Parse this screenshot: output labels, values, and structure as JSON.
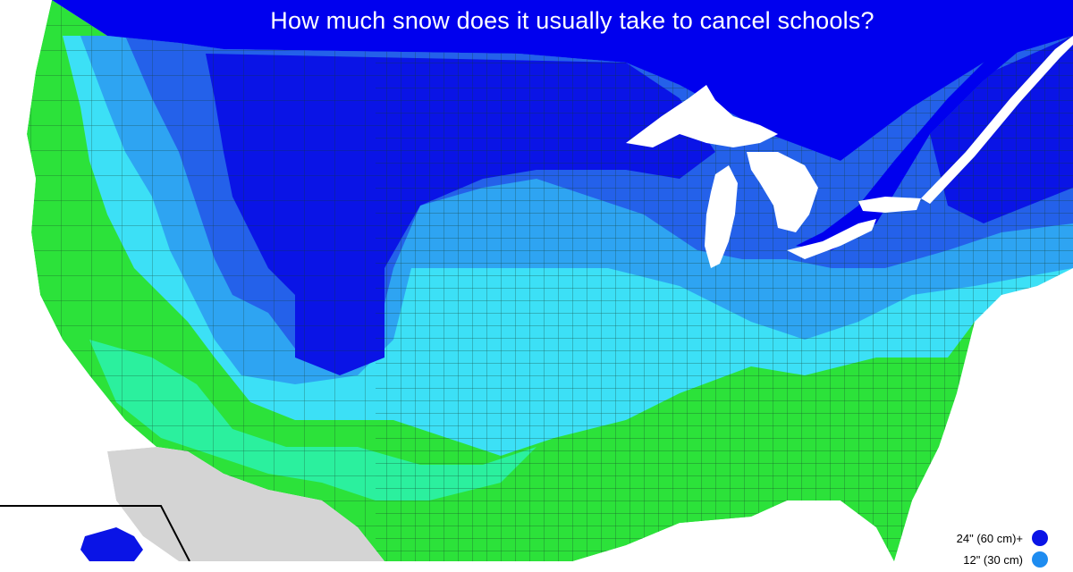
{
  "title": "How much snow does it usually take to cancel schools?",
  "legend": {
    "items": [
      {
        "label": "24\" (60 cm)+",
        "color": "#0a14e6"
      },
      {
        "label": "12\" (30 cm)",
        "color": "#1e8cf0"
      }
    ]
  },
  "colors": {
    "canada_ocean": "#0000ee",
    "lake": "#ffffff",
    "mexico": "#d4d4d4",
    "county_border": "#123a26",
    "tier_24_plus": "#0a14e6",
    "tier_blue": "#2461ea",
    "tier_sky": "#2ea4f2",
    "tier_cyan": "#3ce0f6",
    "tier_mint": "#2cf2b0",
    "tier_green": "#2ce23a"
  }
}
